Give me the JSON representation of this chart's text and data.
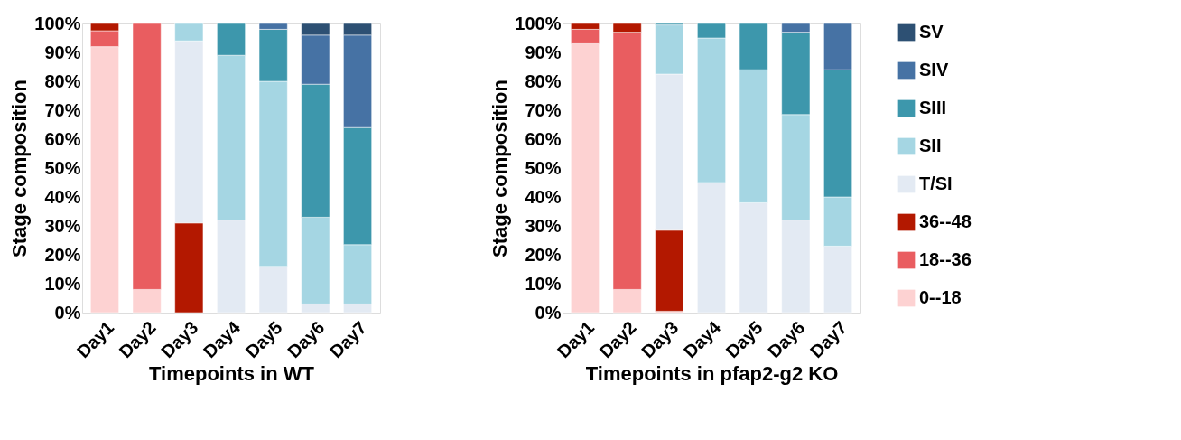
{
  "chart_data": [
    {
      "type": "bar",
      "stacked": true,
      "xlabel": "Timepoints in WT",
      "ylabel": "Stage composition",
      "categories": [
        "Day1",
        "Day2",
        "Day3",
        "Day4",
        "Day5",
        "Day6",
        "Day7"
      ],
      "ylim": [
        0,
        100
      ],
      "yticks": [
        {
          "value": 0,
          "label": "0%"
        },
        {
          "value": 10,
          "label": "10%"
        },
        {
          "value": 20,
          "label": "20%"
        },
        {
          "value": 30,
          "label": "30%"
        },
        {
          "value": 40,
          "label": "40%"
        },
        {
          "value": 50,
          "label": "50%"
        },
        {
          "value": 60,
          "label": "60%"
        },
        {
          "value": 70,
          "label": "70%"
        },
        {
          "value": 80,
          "label": "80%"
        },
        {
          "value": 90,
          "label": "90%"
        },
        {
          "value": 100,
          "label": "100%"
        }
      ],
      "grid": false,
      "legend": "right",
      "series": [
        {
          "name": "0--18",
          "color": "#fdd2d2",
          "values": [
            92,
            8,
            null,
            null,
            null,
            null,
            null
          ]
        },
        {
          "name": "18--36",
          "color": "#e95d60",
          "values": [
            5.5,
            92,
            null,
            null,
            null,
            null,
            null
          ]
        },
        {
          "name": "36--48",
          "color": "#b31800",
          "values": [
            2.5,
            null,
            31,
            null,
            null,
            null,
            null
          ]
        },
        {
          "name": "T/SI",
          "color": "#e3eaf3",
          "values": [
            null,
            null,
            63,
            32,
            16,
            3,
            3
          ]
        },
        {
          "name": "SII",
          "color": "#a5d6e3",
          "values": [
            null,
            null,
            6,
            57,
            64,
            30,
            20.5
          ]
        },
        {
          "name": "SIII",
          "color": "#3d97ac",
          "values": [
            null,
            null,
            null,
            11,
            18,
            46,
            40.5
          ]
        },
        {
          "name": "SIV",
          "color": "#4672a4",
          "values": [
            null,
            null,
            null,
            null,
            2,
            17,
            32
          ]
        },
        {
          "name": "SV",
          "color": "#2d5073",
          "values": [
            null,
            null,
            null,
            null,
            null,
            4,
            4
          ]
        }
      ]
    },
    {
      "type": "bar",
      "stacked": true,
      "xlabel": "Timepoints in pfap2-g2 KO",
      "ylabel": "Stage composition",
      "categories": [
        "Day1",
        "Day2",
        "Day3",
        "Day4",
        "Day5",
        "Day6",
        "Day7"
      ],
      "ylim": [
        0,
        100
      ],
      "yticks": [
        {
          "value": 0,
          "label": "0%"
        },
        {
          "value": 10,
          "label": "10%"
        },
        {
          "value": 20,
          "label": "20%"
        },
        {
          "value": 30,
          "label": "30%"
        },
        {
          "value": 40,
          "label": "40%"
        },
        {
          "value": 50,
          "label": "50%"
        },
        {
          "value": 60,
          "label": "60%"
        },
        {
          "value": 70,
          "label": "70%"
        },
        {
          "value": 80,
          "label": "80%"
        },
        {
          "value": 90,
          "label": "90%"
        },
        {
          "value": 100,
          "label": "100%"
        }
      ],
      "grid": false,
      "legend": "right",
      "series": [
        {
          "name": "0--18",
          "color": "#fdd2d2",
          "values": [
            93,
            8,
            0.5,
            null,
            null,
            null,
            null
          ]
        },
        {
          "name": "18--36",
          "color": "#e95d60",
          "values": [
            5,
            89,
            null,
            null,
            null,
            null,
            null
          ]
        },
        {
          "name": "36--48",
          "color": "#b31800",
          "values": [
            2,
            3,
            28,
            null,
            null,
            null,
            null
          ]
        },
        {
          "name": "T/SI",
          "color": "#e3eaf3",
          "values": [
            null,
            null,
            54,
            45,
            38,
            32,
            23
          ]
        },
        {
          "name": "SII",
          "color": "#a5d6e3",
          "values": [
            null,
            null,
            17,
            50,
            46,
            36.5,
            17
          ]
        },
        {
          "name": "SIII",
          "color": "#3d97ac",
          "values": [
            null,
            null,
            0.5,
            5,
            16,
            28.5,
            44
          ]
        },
        {
          "name": "SIV",
          "color": "#4672a4",
          "values": [
            null,
            null,
            null,
            null,
            null,
            3,
            16
          ]
        },
        {
          "name": "SV",
          "color": "#2d5073",
          "values": [
            null,
            null,
            null,
            null,
            null,
            null,
            null
          ]
        }
      ]
    }
  ]
}
